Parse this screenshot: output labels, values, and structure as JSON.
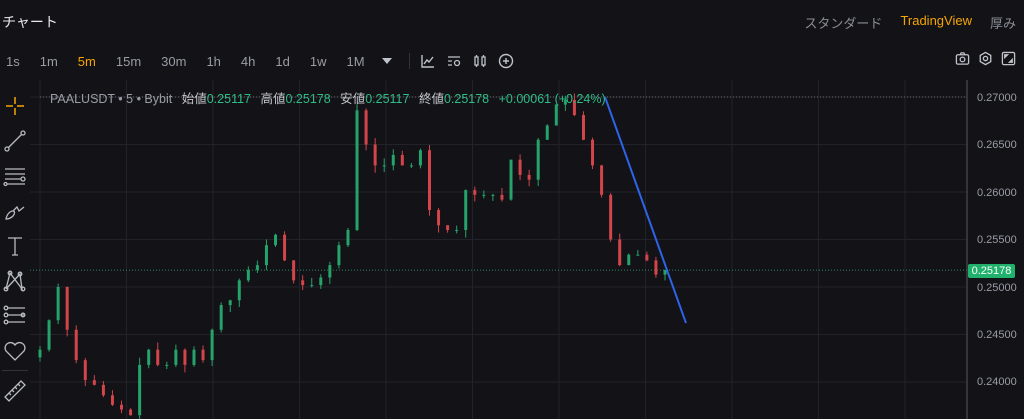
{
  "header": {
    "title": "チャート",
    "views": [
      "スタンダード",
      "TradingView",
      "厚み"
    ],
    "active_view": "TradingView"
  },
  "toolbar": {
    "timeframes": [
      "1s",
      "1m",
      "5m",
      "15m",
      "30m",
      "1h",
      "4h",
      "1d",
      "1w",
      "1M"
    ],
    "active_timeframe": "5m",
    "icons": [
      "dropdown-triangle-icon",
      "indicators-icon",
      "settings-list-icon",
      "candle-type-icon",
      "add-circle-icon"
    ],
    "right_icons": [
      "camera-icon",
      "settings-icon",
      "fullscreen-icon"
    ]
  },
  "sidebar": {
    "tools": [
      "crosshair-icon",
      "trend-line-icon",
      "horizontal-lines-icon",
      "brush-icon",
      "text-icon",
      "pattern-icon",
      "fib-icon",
      "heart-icon",
      "ruler-icon"
    ]
  },
  "legend": {
    "symbol": "PAALUSDT • 5 • Bybit",
    "open_label": "始値",
    "open": "0.25117",
    "high_label": "高値",
    "high": "0.25178",
    "low_label": "安値",
    "low": "0.25117",
    "close_label": "終値",
    "close": "0.25178",
    "change": "+0.00061 (+0.24%)"
  },
  "chart_data": {
    "type": "candlestick",
    "ylim": [
      0.2365,
      0.272
    ],
    "yticks": [
      "0.27000",
      "0.26500",
      "0.26000",
      "0.25500",
      "0.25000",
      "0.24500",
      "0.24000"
    ],
    "last_price": "0.25178",
    "closes": [
      0.2434,
      0.2465,
      0.25,
      0.2455,
      0.2423,
      0.2402,
      0.2397,
      0.2386,
      0.2376,
      0.2371,
      0.2365,
      0.2418,
      0.2434,
      0.2418,
      0.2418,
      0.2434,
      0.2418,
      0.2434,
      0.2423,
      0.2455,
      0.2481,
      0.2486,
      0.2507,
      0.2518,
      0.2523,
      0.2544,
      0.2555,
      0.2528,
      0.2507,
      0.2502,
      0.2502,
      0.251,
      0.2523,
      0.2544,
      0.256,
      0.2686,
      0.265,
      0.2628,
      0.2628,
      0.2639,
      0.2628,
      0.2628,
      0.2644,
      0.2581,
      0.2565,
      0.256,
      0.256,
      0.2602,
      0.2597,
      0.2597,
      0.2597,
      0.2592,
      0.2634,
      0.2618,
      0.2613,
      0.2655,
      0.267,
      0.2692,
      0.2697,
      0.2681,
      0.2655,
      0.2628,
      0.2597,
      0.255,
      0.2523,
      0.2534,
      0.2534,
      0.2528,
      0.2513,
      0.2518
    ],
    "trend_line": {
      "from": 0.27,
      "to": 0.2462,
      "color": "#2f63e8"
    },
    "up_color": "#26a36a",
    "down_color": "#d2454a"
  }
}
